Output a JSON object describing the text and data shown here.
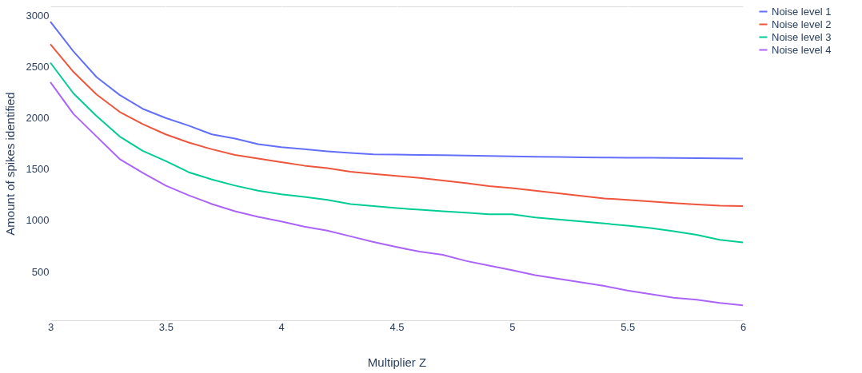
{
  "chart_data": {
    "type": "line",
    "xlabel": "Multiplier Z",
    "ylabel": "Amount of spikes identified",
    "x": [
      3,
      3.1,
      3.2,
      3.3,
      3.4,
      3.5,
      3.6,
      3.7,
      3.8,
      3.9,
      4,
      4.1,
      4.2,
      4.3,
      4.4,
      4.5,
      4.6,
      4.7,
      4.8,
      4.9,
      5,
      5.1,
      5.2,
      5.3,
      5.4,
      5.5,
      5.6,
      5.7,
      5.8,
      5.9,
      6
    ],
    "series": [
      {
        "name": "Noise level 1",
        "color": "#636efa",
        "values": [
          2940,
          2650,
          2400,
          2225,
          2090,
          2000,
          1925,
          1840,
          1800,
          1745,
          1715,
          1695,
          1675,
          1658,
          1645,
          1643,
          1640,
          1637,
          1633,
          1630,
          1625,
          1622,
          1619,
          1616,
          1614,
          1613,
          1612,
          1610,
          1608,
          1606,
          1605
        ]
      },
      {
        "name": "Noise level 2",
        "color": "#ef553b",
        "values": [
          2720,
          2450,
          2230,
          2060,
          1940,
          1840,
          1760,
          1695,
          1640,
          1605,
          1570,
          1535,
          1510,
          1475,
          1455,
          1435,
          1415,
          1390,
          1365,
          1335,
          1315,
          1290,
          1265,
          1240,
          1215,
          1200,
          1185,
          1170,
          1155,
          1145,
          1140
        ]
      },
      {
        "name": "Noise level 3",
        "color": "#00cc96",
        "values": [
          2540,
          2240,
          2020,
          1820,
          1680,
          1580,
          1470,
          1400,
          1340,
          1290,
          1255,
          1230,
          1200,
          1160,
          1140,
          1120,
          1105,
          1090,
          1075,
          1060,
          1060,
          1030,
          1010,
          990,
          970,
          950,
          925,
          895,
          860,
          810,
          785
        ]
      },
      {
        "name": "Noise level 4",
        "color": "#ab63fa",
        "values": [
          2350,
          2040,
          1820,
          1600,
          1465,
          1340,
          1245,
          1160,
          1090,
          1035,
          990,
          940,
          900,
          845,
          790,
          740,
          695,
          665,
          605,
          560,
          515,
          465,
          430,
          395,
          360,
          315,
          280,
          245,
          225,
          195,
          172
        ]
      }
    ],
    "xlim": [
      3,
      6
    ],
    "xticks": [
      3,
      3.5,
      4,
      4.5,
      5,
      5.5,
      6
    ],
    "ylim": [
      25,
      3090
    ],
    "yticks": [
      500,
      1000,
      1500,
      2000,
      2500,
      3000
    ],
    "grid": true,
    "legend": "top right",
    "marker": "none",
    "line_style": "solid"
  }
}
